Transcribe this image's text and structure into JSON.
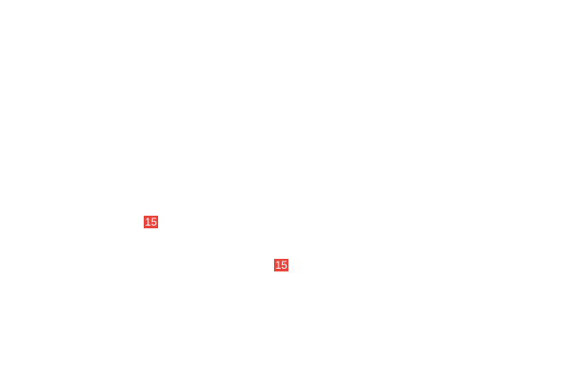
{
  "badges": [
    {
      "label": "15",
      "color": "#e8453c"
    },
    {
      "label": "15",
      "color": "#e8453c"
    }
  ]
}
